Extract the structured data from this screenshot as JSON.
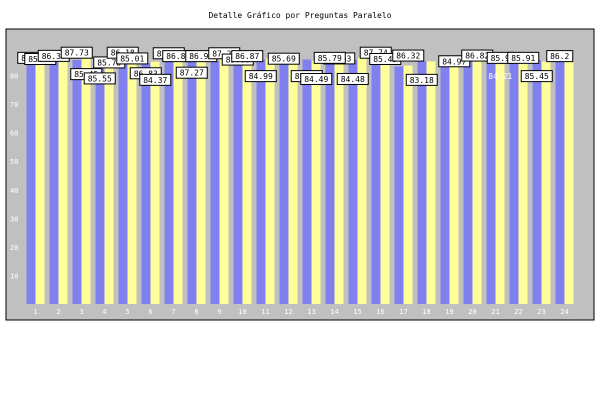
{
  "colors": {
    "plot_bg": "#c0c0c0",
    "series_a": "#8080f0",
    "series_b": "#ffff99",
    "label_box": "#ffffff",
    "axis_text": "#ffffff"
  },
  "chart_data": {
    "type": "bar",
    "title": "Detalle Gráfico por Preguntas Paralelo",
    "xlabel": "",
    "ylabel": "",
    "ylim": [
      0,
      90
    ],
    "yticks": [
      "10",
      "20",
      "30",
      "40",
      "50",
      "60",
      "70",
      "80"
    ],
    "categories": [
      "1",
      "2",
      "3",
      "4",
      "5",
      "6",
      "7",
      "8",
      "9",
      "10",
      "11",
      "12",
      "13",
      "14",
      "15",
      "16",
      "17",
      "18",
      "19",
      "20",
      "21",
      "22",
      "23",
      "24"
    ],
    "grid": false,
    "legend": "none",
    "series": [
      {
        "values": [
          85.5,
          86.37,
          85.45,
          85.75,
          85.01,
          84.37,
          86.81,
          86.91,
          85.06,
          86.9,
          85.69,
          85.8,
          85.63,
          84.48,
          85.49,
          86.32,
          83.18,
          84.97,
          86.82,
          85.9,
          84.21,
          85.91,
          85.45,
          85.2
        ]
      },
      {
        "values": [
          85.4,
          86.5,
          87.1,
          84.3,
          87.2,
          84.83,
          86.9,
          87.27,
          86.6,
          84.99,
          86.0,
          84.49,
          85.2,
          86.5,
          86.3,
          86.0,
          83.5,
          84.97,
          85.3,
          85.0,
          84.0,
          84.7,
          84.9,
          85.2
        ]
      }
    ],
    "data_labels": [
      {
        "text": "85.5",
        "cat": 0,
        "series": 0,
        "level": 86.2
      },
      {
        "text": "85.47",
        "cat": 0,
        "series": 1,
        "level": 85.8
      },
      {
        "text": "86.37",
        "cat": 1,
        "series": 0,
        "level": 86.9
      },
      {
        "text": "87.73",
        "cat": 2,
        "series": 0,
        "level": 88.0
      },
      {
        "text": "85.45",
        "cat": 2,
        "series": 1,
        "level": 80.5
      },
      {
        "text": "85.55",
        "cat": 3,
        "series": 0,
        "level": 79.0
      },
      {
        "text": "85.75",
        "cat": 3,
        "series": 1,
        "level": 84.6
      },
      {
        "text": "86.18",
        "cat": 4,
        "series": 0,
        "level": 88.0
      },
      {
        "text": "85.01",
        "cat": 4,
        "series": 1,
        "level": 86.0
      },
      {
        "text": "86.83",
        "cat": 5,
        "series": 0,
        "level": 80.8
      },
      {
        "text": "84.37",
        "cat": 5,
        "series": 1,
        "level": 78.5
      },
      {
        "text": "87.18",
        "cat": 6,
        "series": 0,
        "level": 87.8
      },
      {
        "text": "86.81",
        "cat": 6,
        "series": 1,
        "level": 86.8
      },
      {
        "text": "87.27",
        "cat": 7,
        "series": 0,
        "level": 81.0
      },
      {
        "text": "86.91",
        "cat": 7,
        "series": 1,
        "level": 86.8
      },
      {
        "text": "87.27",
        "cat": 8,
        "series": 1,
        "level": 87.8
      },
      {
        "text": "85.06",
        "cat": 9,
        "series": 0,
        "level": 85.6
      },
      {
        "text": "86.87",
        "cat": 9,
        "series": 1,
        "level": 86.8
      },
      {
        "text": "84.99",
        "cat": 10,
        "series": 0,
        "level": 79.8
      },
      {
        "text": "85.69",
        "cat": 11,
        "series": 0,
        "level": 85.9
      },
      {
        "text": "85.85",
        "cat": 12,
        "series": 0,
        "level": 79.8
      },
      {
        "text": "84.49",
        "cat": 12,
        "series": 1,
        "level": 78.8
      },
      {
        "text": "85.63",
        "cat": 13,
        "series": 1,
        "level": 86.0
      },
      {
        "text": "85.79",
        "cat": 13,
        "series": 0,
        "level": 86.2
      },
      {
        "text": "84.48",
        "cat": 14,
        "series": 0,
        "level": 78.8
      },
      {
        "text": "87.74",
        "cat": 15,
        "series": 0,
        "level": 88.0
      },
      {
        "text": "85.49",
        "cat": 15,
        "series": 1,
        "level": 85.8
      },
      {
        "text": "86.32",
        "cat": 16,
        "series": 1,
        "level": 87.0
      },
      {
        "text": "83.18",
        "cat": 17,
        "series": 0,
        "level": 78.5
      },
      {
        "text": "84.97",
        "cat": 18,
        "series": 1,
        "level": 85.0
      },
      {
        "text": "86.82",
        "cat": 19,
        "series": 1,
        "level": 87.0
      },
      {
        "text": "85.9",
        "cat": 20,
        "series": 1,
        "level": 86.2
      },
      {
        "text": "85.91",
        "cat": 21,
        "series": 1,
        "level": 86.2
      },
      {
        "text": "85.45",
        "cat": 22,
        "series": 0,
        "level": 79.8
      },
      {
        "text": "86.2",
        "cat": 23,
        "series": 0,
        "level": 86.8
      }
    ],
    "inner_labels": [
      {
        "text": "84.21",
        "cat": 20,
        "series": 1,
        "level": 79.8
      }
    ]
  }
}
